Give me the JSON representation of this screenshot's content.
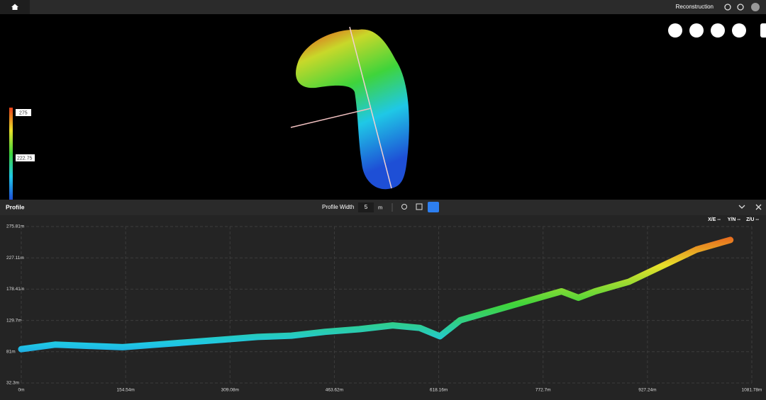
{
  "top_bar": {
    "title": "Reconstruction"
  },
  "legend": {
    "labels": [
      "275",
      "222.75"
    ]
  },
  "profile_panel": {
    "title": "Profile",
    "width_label": "Profile Width",
    "width_value": "5",
    "width_unit": "m",
    "coords": [
      "X/E --",
      "Y/N --",
      "Z/U --"
    ]
  },
  "chart_data": {
    "type": "line",
    "x": [
      0,
      50,
      100,
      150,
      200,
      250,
      300,
      350,
      400,
      450,
      500,
      550,
      590,
      620,
      650,
      700,
      750,
      800,
      825,
      850,
      900,
      950,
      1000,
      1050
    ],
    "values": [
      85,
      92,
      90,
      88,
      92,
      96,
      100,
      104,
      106,
      112,
      116,
      122,
      118,
      105,
      130,
      145,
      160,
      175,
      165,
      175,
      190,
      215,
      240,
      255
    ],
    "colorscale": [
      "#1e4fd6",
      "#1fc8e6",
      "#3fd43b",
      "#e8e02a",
      "#e8401a"
    ],
    "xlim": [
      0,
      1081.78
    ],
    "ylim": [
      32.3,
      275.81
    ],
    "xticks": [
      {
        "value": 0,
        "label": "0m"
      },
      {
        "value": 154.54,
        "label": "154.54m"
      },
      {
        "value": 309.08,
        "label": "309.08m"
      },
      {
        "value": 463.62,
        "label": "463.62m"
      },
      {
        "value": 618.16,
        "label": "618.16m"
      },
      {
        "value": 772.7,
        "label": "772.7m"
      },
      {
        "value": 927.24,
        "label": "927.24m"
      },
      {
        "value": 1081.78,
        "label": "1081.78m"
      }
    ],
    "yticks": [
      {
        "value": 32.3,
        "label": "32.3m"
      },
      {
        "value": 81,
        "label": "81m"
      },
      {
        "value": 129.7,
        "label": "129.7m"
      },
      {
        "value": 178.41,
        "label": "178.41m"
      },
      {
        "value": 227.11,
        "label": "227.11m"
      },
      {
        "value": 275.81,
        "label": "275.81m"
      }
    ],
    "grid": true
  }
}
